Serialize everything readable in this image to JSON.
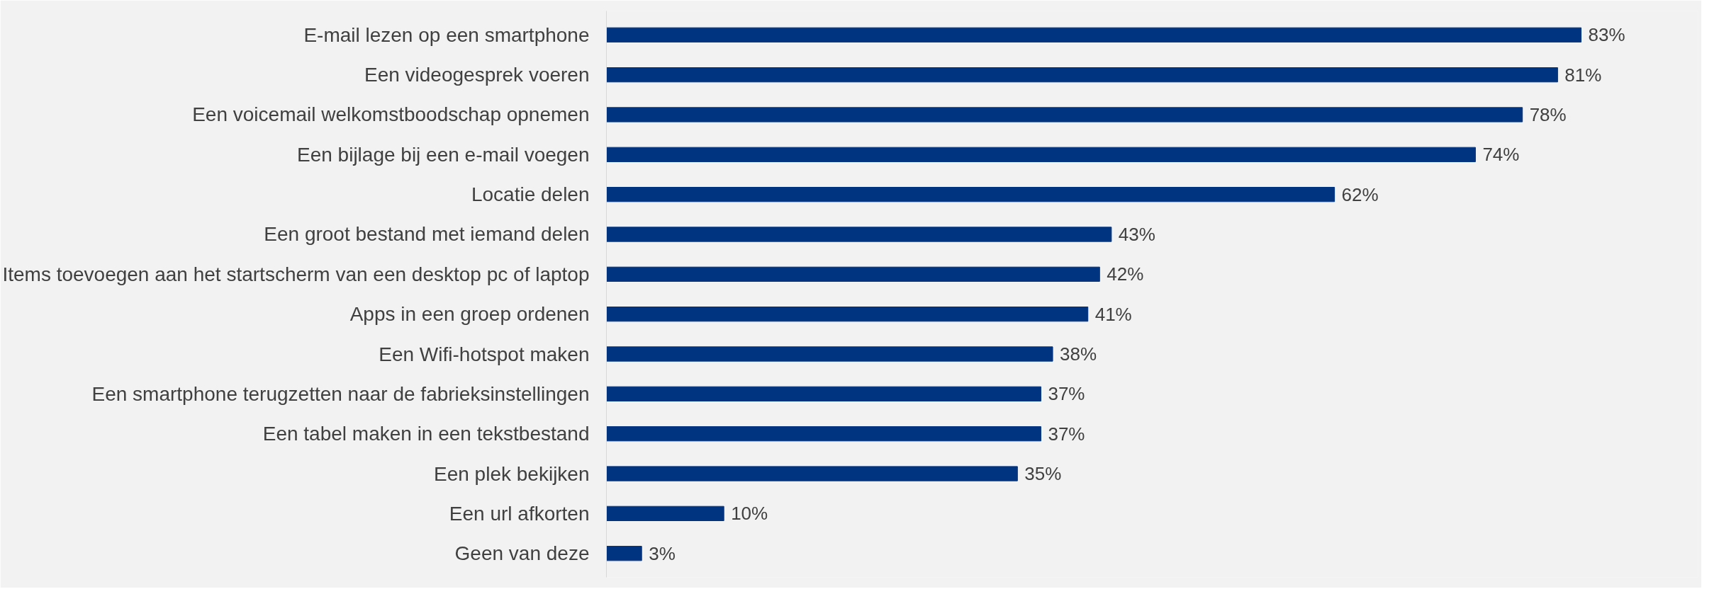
{
  "chart_data": {
    "type": "bar",
    "orientation": "horizontal",
    "categories": [
      "E-mail lezen op een smartphone",
      "Een videogesprek voeren",
      "Een voicemail welkomstboodschap opnemen",
      "Een bijlage bij een e-mail voegen",
      "Locatie delen",
      "Een groot bestand met iemand delen",
      "Items toevoegen aan het startscherm van een desktop pc of laptop",
      "Apps in een groep ordenen",
      "Een Wifi-hotspot maken",
      "Een smartphone terugzetten naar de fabrieksinstellingen",
      "Een tabel maken in een tekstbestand",
      "Een plek bekijken",
      "Een url afkorten",
      "Geen van deze"
    ],
    "values": [
      83,
      81,
      78,
      74,
      62,
      43,
      42,
      41,
      38,
      37,
      37,
      35,
      10,
      3
    ],
    "value_labels": [
      "83%",
      "81%",
      "78%",
      "74%",
      "62%",
      "43%",
      "42%",
      "41%",
      "38%",
      "37%",
      "37%",
      "35%",
      "10%",
      "3%"
    ],
    "color": "#003380",
    "grid": false
  }
}
